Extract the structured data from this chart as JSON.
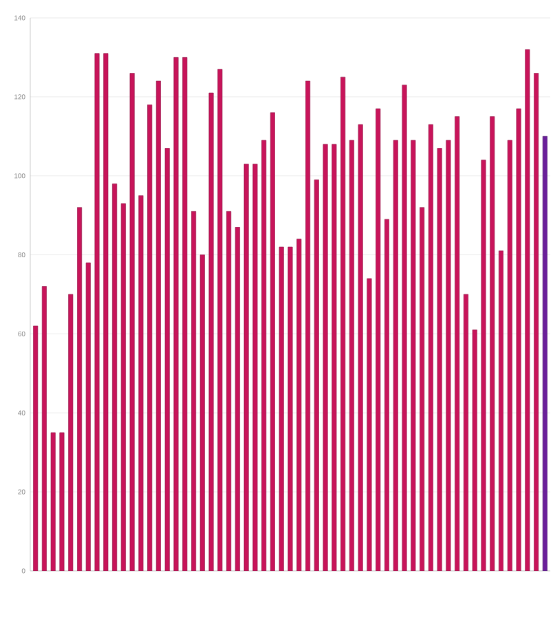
{
  "chart_data": {
    "type": "bar",
    "categories": [
      null,
      null,
      null,
      null,
      null,
      null,
      null,
      null,
      null,
      null,
      null,
      null,
      null,
      null,
      null,
      null,
      null,
      null,
      null,
      null,
      null,
      null,
      null,
      null,
      null,
      null,
      null,
      null,
      null,
      null,
      null,
      null,
      null,
      null,
      null,
      null,
      null,
      null,
      null,
      null,
      null,
      null,
      null,
      null,
      null,
      null,
      null,
      null,
      null,
      null,
      null,
      null,
      null,
      null,
      null,
      null,
      null,
      null,
      null
    ],
    "values": [
      62,
      72,
      35,
      35,
      70,
      92,
      78,
      131,
      131,
      98,
      93,
      126,
      95,
      118,
      124,
      107,
      130,
      130,
      91,
      80,
      121,
      127,
      91,
      87,
      103,
      103,
      109,
      116,
      82,
      82,
      84,
      124,
      99,
      108,
      108,
      125,
      109,
      113,
      74,
      117,
      89,
      109,
      123,
      109,
      92,
      113,
      107,
      109,
      115,
      70,
      61,
      104,
      115,
      81,
      109,
      117,
      132,
      126,
      110
    ],
    "colors": [
      "#c8145a",
      "#c8145a",
      "#c8145a",
      "#c8145a",
      "#c8145a",
      "#c8145a",
      "#c8145a",
      "#c8145a",
      "#c8145a",
      "#c8145a",
      "#c8145a",
      "#c8145a",
      "#c8145a",
      "#c8145a",
      "#c8145a",
      "#c8145a",
      "#c8145a",
      "#c8145a",
      "#c8145a",
      "#c8145a",
      "#c8145a",
      "#c8145a",
      "#c8145a",
      "#c8145a",
      "#c8145a",
      "#c8145a",
      "#c8145a",
      "#c8145a",
      "#c8145a",
      "#c8145a",
      "#c8145a",
      "#c8145a",
      "#c8145a",
      "#c8145a",
      "#c8145a",
      "#c8145a",
      "#c8145a",
      "#c8145a",
      "#c8145a",
      "#c8145a",
      "#c8145a",
      "#c8145a",
      "#c8145a",
      "#c8145a",
      "#c8145a",
      "#c8145a",
      "#c8145a",
      "#c8145a",
      "#c8145a",
      "#c8145a",
      "#c8145a",
      "#c8145a",
      "#c8145a",
      "#c8145a",
      "#c8145a",
      "#c8145a",
      "#c8145a",
      "#c8145a",
      "#6a1f9a"
    ],
    "ylim": [
      0,
      140
    ],
    "yticks": [
      0,
      20,
      40,
      60,
      80,
      100,
      120,
      140
    ],
    "grid": "y"
  }
}
